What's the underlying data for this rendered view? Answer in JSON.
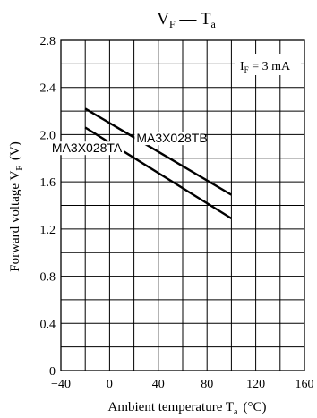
{
  "chart_data": {
    "type": "line",
    "title": {
      "main": "V",
      "main_sub": "F",
      "dash": " — ",
      "var": "T",
      "var_sub": "a"
    },
    "xlabel": {
      "text": "Ambient temperature  T",
      "sub": "a",
      "unit": "(°C)"
    },
    "ylabel": {
      "text": "Forward voltage  V",
      "sub": "F",
      "unit": "(V)"
    },
    "xlim": [
      -40,
      160
    ],
    "ylim": [
      0,
      2.8
    ],
    "x_ticks": [
      -40,
      0,
      40,
      80,
      120,
      160
    ],
    "x_tick_labels": [
      "−40",
      "0",
      "40",
      "80",
      "120",
      "160"
    ],
    "y_ticks": [
      0,
      0.4,
      0.8,
      1.2,
      1.6,
      2.0,
      2.4,
      2.8
    ],
    "y_tick_labels": [
      "0",
      "0.4",
      "0.8",
      "1.2",
      "1.6",
      "2.0",
      "2.4",
      "2.8"
    ],
    "x_grid_step": 20,
    "y_grid_step": 0.2,
    "grid": true,
    "condition": {
      "text": "I",
      "sub": "F",
      "rest": " = 3 mA"
    },
    "series": [
      {
        "name": "MA3X028TB",
        "x": [
          -20,
          100
        ],
        "y": [
          2.22,
          1.49
        ]
      },
      {
        "name": "MA3X028TA",
        "x": [
          -20,
          100
        ],
        "y": [
          2.06,
          1.29
        ]
      }
    ]
  }
}
